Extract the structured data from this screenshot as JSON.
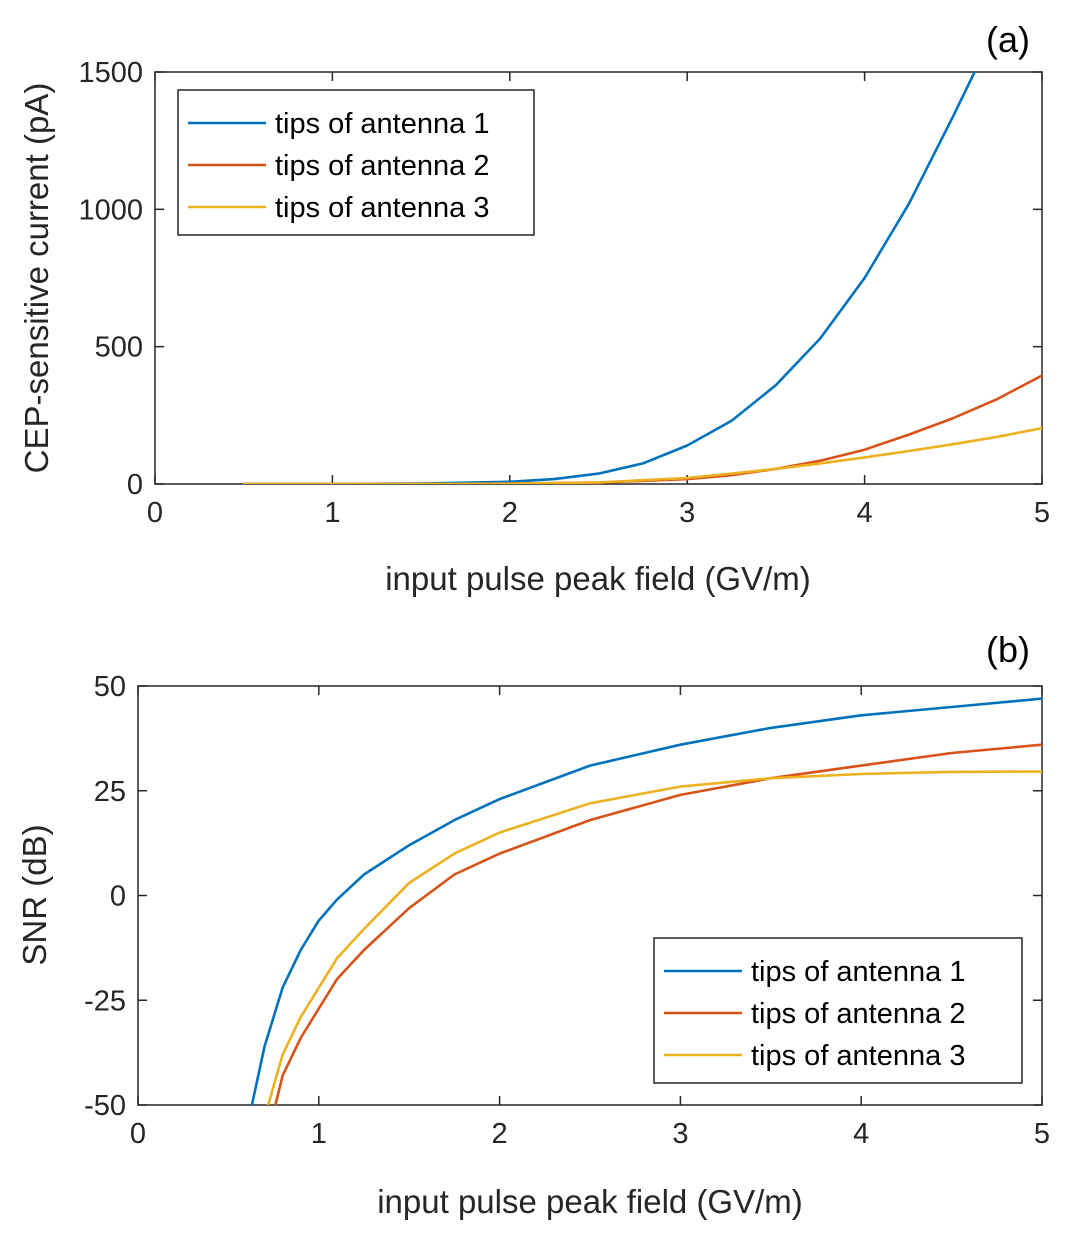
{
  "chart_data": [
    {
      "type": "line",
      "panel_label": "(a)",
      "xlabel": "input pulse peak field (GV/m)",
      "ylabel": "CEP-sensitive current (pA)",
      "xlim": [
        0,
        5
      ],
      "ylim": [
        0,
        1500
      ],
      "xticks": [
        "0",
        "1",
        "2",
        "3",
        "4",
        "5"
      ],
      "yticks": [
        "0",
        "500",
        "1000",
        "1500"
      ],
      "legend_position": "top-left",
      "series": [
        {
          "name": "tips of antenna 1",
          "color": "#0072BD",
          "x": [
            0.5,
            1.0,
            1.5,
            2.0,
            2.25,
            2.5,
            2.75,
            3.0,
            3.25,
            3.5,
            3.75,
            4.0,
            4.25,
            4.5,
            4.62
          ],
          "y": [
            0,
            0,
            2,
            8,
            18,
            38,
            75,
            140,
            230,
            360,
            530,
            750,
            1020,
            1340,
            1500
          ]
        },
        {
          "name": "tips of antenna 2",
          "color": "#D95319",
          "x": [
            0.5,
            1.0,
            1.5,
            2.0,
            2.5,
            3.0,
            3.25,
            3.5,
            3.75,
            4.0,
            4.25,
            4.5,
            4.75,
            5.0
          ],
          "y": [
            0,
            0,
            0,
            1,
            5,
            18,
            32,
            55,
            85,
            125,
            180,
            240,
            310,
            395
          ]
        },
        {
          "name": "tips of antenna 3",
          "color": "#EDB120",
          "x": [
            0.5,
            1.0,
            1.5,
            2.0,
            2.5,
            3.0,
            3.25,
            3.5,
            3.75,
            4.0,
            4.25,
            4.5,
            4.75,
            5.0
          ],
          "y": [
            0,
            0,
            0,
            1,
            6,
            22,
            38,
            55,
            75,
            97,
            120,
            145,
            172,
            203
          ]
        }
      ]
    },
    {
      "type": "line",
      "panel_label": "(b)",
      "xlabel": "input pulse peak field (GV/m)",
      "ylabel": "SNR (dB)",
      "xlim": [
        0,
        5
      ],
      "ylim": [
        -50,
        50
      ],
      "xticks": [
        "0",
        "1",
        "2",
        "3",
        "4",
        "5"
      ],
      "yticks": [
        "-50",
        "-25",
        "0",
        "25",
        "50"
      ],
      "legend_position": "bottom-right",
      "series": [
        {
          "name": "tips of antenna 1",
          "color": "#0072BD",
          "x": [
            0.63,
            0.7,
            0.8,
            0.9,
            1.0,
            1.1,
            1.25,
            1.5,
            1.75,
            2.0,
            2.5,
            3.0,
            3.5,
            4.0,
            4.5,
            5.0
          ],
          "y": [
            -50,
            -36,
            -22,
            -13,
            -6,
            -1,
            5,
            12,
            18,
            23,
            31,
            36,
            40,
            43,
            45,
            47
          ]
        },
        {
          "name": "tips of antenna 2",
          "color": "#D95319",
          "x": [
            0.76,
            0.8,
            0.9,
            1.0,
            1.1,
            1.25,
            1.5,
            1.75,
            2.0,
            2.5,
            3.0,
            3.5,
            4.0,
            4.5,
            5.0
          ],
          "y": [
            -50,
            -43,
            -34,
            -27,
            -20,
            -13,
            -3,
            5,
            10,
            18,
            24,
            28,
            31,
            34,
            36
          ]
        },
        {
          "name": "tips of antenna 3",
          "color": "#EDB120",
          "x": [
            0.72,
            0.8,
            0.9,
            1.0,
            1.1,
            1.25,
            1.5,
            1.75,
            2.0,
            2.5,
            3.0,
            3.5,
            4.0,
            4.5,
            5.0
          ],
          "y": [
            -50,
            -38,
            -29,
            -22,
            -15,
            -8,
            3,
            10,
            15,
            22,
            26,
            28,
            29,
            29.5,
            29.6
          ]
        }
      ]
    }
  ]
}
